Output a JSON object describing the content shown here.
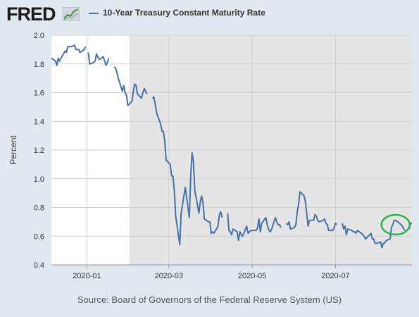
{
  "header": {
    "logo_text": "FRED",
    "logo_icon": "chart-trend-icon",
    "series_title": "10-Year Treasury Constant Maturity Rate"
  },
  "source": "Source: Board of Governors of the Federal Reserve System (US)",
  "colors": {
    "background": "#e1e9f0",
    "plot_background": "#ffffff",
    "recession_shading": "#e5e5e5",
    "line": "#4572a7",
    "annotation_circle": "#2bb34a"
  },
  "chart_data": {
    "type": "line",
    "title": "10-Year Treasury Constant Maturity Rate",
    "xlabel": "",
    "ylabel": "Percent",
    "x_type": "date",
    "xlim": [
      "2019-12-06",
      "2020-08-26"
    ],
    "ylim": [
      0.4,
      2.0
    ],
    "yticks": [
      0.4,
      0.6,
      0.8,
      1.0,
      1.2,
      1.4,
      1.6,
      1.8,
      2.0
    ],
    "yticks_labels": [
      "0.4",
      "0.6",
      "0.8",
      "1.0",
      "1.2",
      "1.4",
      "1.6",
      "1.8",
      "2.0"
    ],
    "xticks": [
      "2020-01-01",
      "2020-03-01",
      "2020-05-01",
      "2020-07-01"
    ],
    "xticks_labels": [
      "2020-01",
      "2020-03",
      "2020-05",
      "2020-07"
    ],
    "grid": true,
    "legend": "top-left",
    "shaded_region": {
      "start": "2020-02-01",
      "end": "2020-08-26"
    },
    "annotation": {
      "type": "circle",
      "center": [
        "2020-08-14",
        0.68
      ]
    },
    "series": [
      {
        "name": "10-Year Treasury Constant Maturity Rate",
        "segments": [
          [
            [
              "2019-12-06",
              1.84
            ],
            [
              "2019-12-09",
              1.82
            ],
            [
              "2019-12-10",
              1.79
            ],
            [
              "2019-12-11",
              1.84
            ],
            [
              "2019-12-12",
              1.82
            ],
            [
              "2019-12-13",
              1.84
            ],
            [
              "2019-12-16",
              1.89
            ],
            [
              "2019-12-17",
              1.88
            ],
            [
              "2019-12-18",
              1.92
            ],
            [
              "2019-12-19",
              1.92
            ],
            [
              "2019-12-20",
              1.92
            ],
            [
              "2019-12-23",
              1.93
            ],
            [
              "2019-12-24",
              1.9
            ],
            [
              "2019-12-26",
              1.9
            ],
            [
              "2019-12-27",
              1.88
            ],
            [
              "2019-12-30",
              1.9
            ],
            [
              "2019-12-31",
              1.92
            ]
          ],
          [
            [
              "2020-01-02",
              1.88
            ],
            [
              "2020-01-03",
              1.8
            ],
            [
              "2020-01-06",
              1.81
            ],
            [
              "2020-01-07",
              1.82
            ],
            [
              "2020-01-08",
              1.87
            ],
            [
              "2020-01-09",
              1.85
            ],
            [
              "2020-01-10",
              1.83
            ],
            [
              "2020-01-13",
              1.85
            ],
            [
              "2020-01-14",
              1.82
            ],
            [
              "2020-01-15",
              1.79
            ],
            [
              "2020-01-16",
              1.81
            ],
            [
              "2020-01-17",
              1.84
            ]
          ],
          [
            [
              "2020-01-21",
              1.78
            ],
            [
              "2020-01-22",
              1.77
            ],
            [
              "2020-01-23",
              1.74
            ],
            [
              "2020-01-24",
              1.7
            ],
            [
              "2020-01-27",
              1.61
            ],
            [
              "2020-01-28",
              1.65
            ],
            [
              "2020-01-29",
              1.6
            ],
            [
              "2020-01-30",
              1.58
            ],
            [
              "2020-01-31",
              1.51
            ],
            [
              "2020-02-03",
              1.54
            ],
            [
              "2020-02-04",
              1.61
            ],
            [
              "2020-02-05",
              1.66
            ],
            [
              "2020-02-06",
              1.65
            ],
            [
              "2020-02-07",
              1.59
            ],
            [
              "2020-02-10",
              1.56
            ],
            [
              "2020-02-11",
              1.6
            ],
            [
              "2020-02-12",
              1.63
            ],
            [
              "2020-02-13",
              1.61
            ],
            [
              "2020-02-14",
              1.59
            ]
          ],
          [
            [
              "2020-02-18",
              1.56
            ],
            [
              "2020-02-19",
              1.57
            ],
            [
              "2020-02-20",
              1.52
            ],
            [
              "2020-02-21",
              1.46
            ],
            [
              "2020-02-24",
              1.38
            ],
            [
              "2020-02-25",
              1.33
            ],
            [
              "2020-02-26",
              1.33
            ],
            [
              "2020-02-27",
              1.26
            ],
            [
              "2020-02-28",
              1.13
            ],
            [
              "2020-03-02",
              1.1
            ],
            [
              "2020-03-03",
              1.02
            ],
            [
              "2020-03-04",
              1.02
            ],
            [
              "2020-03-05",
              0.92
            ],
            [
              "2020-03-06",
              0.74
            ],
            [
              "2020-03-09",
              0.54
            ],
            [
              "2020-03-10",
              0.76
            ],
            [
              "2020-03-11",
              0.82
            ],
            [
              "2020-03-12",
              0.88
            ],
            [
              "2020-03-13",
              0.94
            ],
            [
              "2020-03-16",
              0.73
            ],
            [
              "2020-03-17",
              1.02
            ],
            [
              "2020-03-18",
              1.18
            ],
            [
              "2020-03-19",
              1.12
            ],
            [
              "2020-03-20",
              0.92
            ],
            [
              "2020-03-23",
              0.76
            ],
            [
              "2020-03-24",
              0.84
            ],
            [
              "2020-03-25",
              0.88
            ],
            [
              "2020-03-26",
              0.83
            ],
            [
              "2020-03-27",
              0.72
            ],
            [
              "2020-03-30",
              0.7
            ],
            [
              "2020-03-31",
              0.7
            ],
            [
              "2020-04-01",
              0.62
            ],
            [
              "2020-04-02",
              0.63
            ],
            [
              "2020-04-03",
              0.62
            ],
            [
              "2020-04-06",
              0.67
            ],
            [
              "2020-04-07",
              0.75
            ],
            [
              "2020-04-08",
              0.77
            ],
            [
              "2020-04-09",
              0.73
            ]
          ],
          [
            [
              "2020-04-13",
              0.76
            ],
            [
              "2020-04-14",
              0.64
            ],
            [
              "2020-04-15",
              0.63
            ],
            [
              "2020-04-16",
              0.61
            ],
            [
              "2020-04-17",
              0.65
            ],
            [
              "2020-04-20",
              0.63
            ],
            [
              "2020-04-21",
              0.57
            ],
            [
              "2020-04-22",
              0.63
            ],
            [
              "2020-04-23",
              0.61
            ],
            [
              "2020-04-24",
              0.6
            ],
            [
              "2020-04-27",
              0.67
            ],
            [
              "2020-04-28",
              0.62
            ],
            [
              "2020-04-29",
              0.63
            ],
            [
              "2020-04-30",
              0.64
            ],
            [
              "2020-05-01",
              0.64
            ],
            [
              "2020-05-04",
              0.64
            ],
            [
              "2020-05-05",
              0.66
            ],
            [
              "2020-05-06",
              0.72
            ],
            [
              "2020-05-07",
              0.63
            ],
            [
              "2020-05-08",
              0.69
            ],
            [
              "2020-05-11",
              0.73
            ],
            [
              "2020-05-12",
              0.68
            ],
            [
              "2020-05-13",
              0.65
            ],
            [
              "2020-05-14",
              0.63
            ],
            [
              "2020-05-15",
              0.64
            ],
            [
              "2020-05-18",
              0.73
            ],
            [
              "2020-05-19",
              0.7
            ],
            [
              "2020-05-20",
              0.68
            ],
            [
              "2020-05-21",
              0.68
            ],
            [
              "2020-05-22",
              0.66
            ]
          ],
          [
            [
              "2020-05-26",
              0.69
            ],
            [
              "2020-05-27",
              0.68
            ],
            [
              "2020-05-28",
              0.7
            ],
            [
              "2020-05-29",
              0.65
            ],
            [
              "2020-06-01",
              0.66
            ],
            [
              "2020-06-02",
              0.68
            ],
            [
              "2020-06-03",
              0.77
            ],
            [
              "2020-06-04",
              0.82
            ],
            [
              "2020-06-05",
              0.91
            ],
            [
              "2020-06-08",
              0.88
            ],
            [
              "2020-06-09",
              0.84
            ],
            [
              "2020-06-10",
              0.75
            ],
            [
              "2020-06-11",
              0.67
            ],
            [
              "2020-06-12",
              0.71
            ],
            [
              "2020-06-15",
              0.71
            ],
            [
              "2020-06-16",
              0.75
            ],
            [
              "2020-06-17",
              0.74
            ],
            [
              "2020-06-18",
              0.71
            ],
            [
              "2020-06-19",
              0.7
            ],
            [
              "2020-06-22",
              0.71
            ],
            [
              "2020-06-23",
              0.72
            ],
            [
              "2020-06-24",
              0.69
            ],
            [
              "2020-06-25",
              0.68
            ],
            [
              "2020-06-26",
              0.64
            ],
            [
              "2020-06-29",
              0.64
            ],
            [
              "2020-06-30",
              0.66
            ],
            [
              "2020-07-01",
              0.69
            ],
            [
              "2020-07-02",
              0.68
            ]
          ],
          [
            [
              "2020-07-06",
              0.69
            ],
            [
              "2020-07-07",
              0.65
            ],
            [
              "2020-07-08",
              0.67
            ],
            [
              "2020-07-09",
              0.61
            ],
            [
              "2020-07-10",
              0.65
            ],
            [
              "2020-07-13",
              0.64
            ],
            [
              "2020-07-14",
              0.63
            ],
            [
              "2020-07-15",
              0.63
            ],
            [
              "2020-07-16",
              0.62
            ],
            [
              "2020-07-17",
              0.64
            ],
            [
              "2020-07-20",
              0.62
            ],
            [
              "2020-07-21",
              0.61
            ],
            [
              "2020-07-22",
              0.6
            ],
            [
              "2020-07-23",
              0.58
            ],
            [
              "2020-07-24",
              0.59
            ],
            [
              "2020-07-27",
              0.62
            ],
            [
              "2020-07-28",
              0.58
            ],
            [
              "2020-07-29",
              0.58
            ],
            [
              "2020-07-30",
              0.55
            ],
            [
              "2020-07-31",
              0.55
            ],
            [
              "2020-08-03",
              0.56
            ],
            [
              "2020-08-04",
              0.52
            ],
            [
              "2020-08-05",
              0.55
            ],
            [
              "2020-08-06",
              0.55
            ],
            [
              "2020-08-07",
              0.57
            ],
            [
              "2020-08-10",
              0.58
            ],
            [
              "2020-08-11",
              0.66
            ],
            [
              "2020-08-12",
              0.68
            ],
            [
              "2020-08-13",
              0.71
            ],
            [
              "2020-08-14",
              0.71
            ],
            [
              "2020-08-17",
              0.69
            ],
            [
              "2020-08-18",
              0.68
            ],
            [
              "2020-08-19",
              0.67
            ],
            [
              "2020-08-20",
              0.65
            ],
            [
              "2020-08-21",
              0.64
            ]
          ],
          [
            [
              "2020-08-24",
              0.65
            ],
            [
              "2020-08-25",
              0.69
            ],
            [
              "2020-08-26",
              0.69
            ]
          ]
        ]
      }
    ]
  }
}
